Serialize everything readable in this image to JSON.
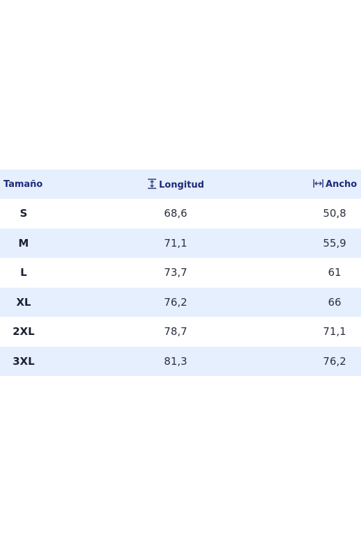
{
  "table": {
    "headers": {
      "size": "Tamaño",
      "length": "Longitud",
      "length_icon": "vertical-height-icon",
      "width": "Ancho",
      "width_icon": "horizontal-width-icon"
    },
    "rows": [
      {
        "size": "S",
        "length": "68,6",
        "width": "50,8"
      },
      {
        "size": "M",
        "length": "71,1",
        "width": "55,9"
      },
      {
        "size": "L",
        "length": "73,7",
        "width": "61"
      },
      {
        "size": "XL",
        "length": "76,2",
        "width": "66"
      },
      {
        "size": "2XL",
        "length": "78,7",
        "width": "71,1"
      },
      {
        "size": "3XL",
        "length": "81,3",
        "width": "76,2"
      }
    ]
  },
  "colors": {
    "header_text": "#1e2a7a",
    "shaded_row": "#e6effd"
  }
}
